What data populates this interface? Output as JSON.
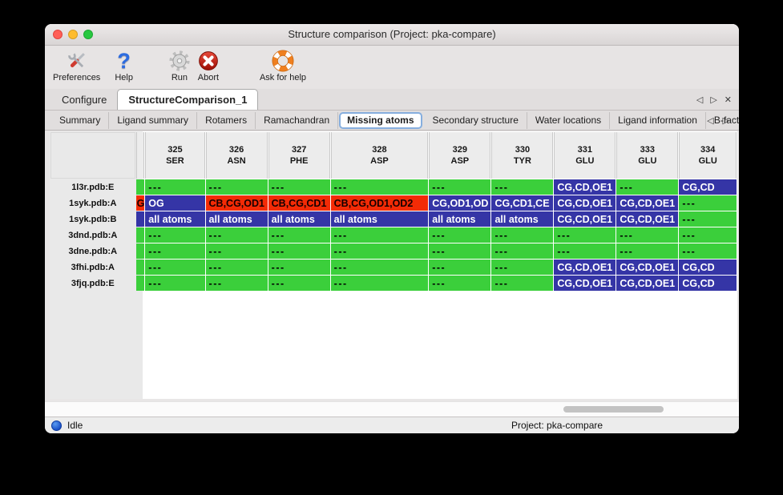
{
  "window": {
    "title": "Structure comparison (Project: pka-compare)"
  },
  "toolbar": {
    "buttons": [
      {
        "label": "Preferences",
        "icon": "tools-icon"
      },
      {
        "label": "Help",
        "icon": "question-icon"
      },
      {
        "label": "Run",
        "icon": "gear-icon"
      },
      {
        "label": "Abort",
        "icon": "abort-icon"
      },
      {
        "label": "Ask for help",
        "icon": "lifebuoy-icon"
      }
    ]
  },
  "icons": {
    "help_glyph": "?",
    "idle_dot": "blue-circle"
  },
  "tabs": {
    "primary": [
      {
        "label": "Configure",
        "selected": false
      },
      {
        "label": "StructureComparison_1",
        "selected": true
      }
    ],
    "secondary": [
      {
        "label": "Summary",
        "selected": false
      },
      {
        "label": "Ligand summary",
        "selected": false
      },
      {
        "label": "Rotamers",
        "selected": false
      },
      {
        "label": "Ramachandran",
        "selected": false
      },
      {
        "label": "Missing atoms",
        "selected": true
      },
      {
        "label": "Secondary structure",
        "selected": false
      },
      {
        "label": "Water locations",
        "selected": false
      },
      {
        "label": "Ligand information",
        "selected": false
      },
      {
        "label": "B-factors",
        "selected": false
      }
    ],
    "nav": {
      "left": "◁",
      "right": "▷",
      "close": "✕"
    }
  },
  "table": {
    "columns": [
      {
        "num": "325",
        "res": "SER"
      },
      {
        "num": "326",
        "res": "ASN"
      },
      {
        "num": "327",
        "res": "PHE"
      },
      {
        "num": "328",
        "res": "ASP"
      },
      {
        "num": "329",
        "res": "ASP"
      },
      {
        "num": "330",
        "res": "TYR"
      },
      {
        "num": "331",
        "res": "GLU"
      },
      {
        "num": "333",
        "res": "GLU"
      },
      {
        "num": "334",
        "res": "GLU"
      }
    ],
    "rows": [
      {
        "label": "1l3r.pdb:E",
        "sliver": {
          "c": "g",
          "t": ""
        },
        "cells": [
          {
            "c": "g",
            "t": "---"
          },
          {
            "c": "g",
            "t": "---"
          },
          {
            "c": "g",
            "t": "---"
          },
          {
            "c": "g",
            "t": "---"
          },
          {
            "c": "g",
            "t": "---"
          },
          {
            "c": "g",
            "t": "---"
          },
          {
            "c": "b",
            "t": "CG,CD,OE1"
          },
          {
            "c": "g",
            "t": "---"
          },
          {
            "c": "b",
            "t": "CG,CD"
          }
        ]
      },
      {
        "label": "1syk.pdb:A",
        "sliver": {
          "c": "r",
          "t": "G"
        },
        "cells": [
          {
            "c": "b",
            "t": "OG"
          },
          {
            "c": "r",
            "t": "CB,CG,OD1"
          },
          {
            "c": "r",
            "t": "CB,CG,CD1"
          },
          {
            "c": "r",
            "t": "CB,CG,OD1,OD2"
          },
          {
            "c": "b",
            "t": "CG,OD1,OD"
          },
          {
            "c": "b",
            "t": "CG,CD1,CE"
          },
          {
            "c": "b",
            "t": "CG,CD,OE1"
          },
          {
            "c": "b",
            "t": "CG,CD,OE1"
          },
          {
            "c": "g",
            "t": "---"
          }
        ]
      },
      {
        "label": "1syk.pdb:B",
        "sliver": {
          "c": "b",
          "t": ""
        },
        "cells": [
          {
            "c": "b",
            "t": "all atoms"
          },
          {
            "c": "b",
            "t": "all atoms"
          },
          {
            "c": "b",
            "t": "all atoms"
          },
          {
            "c": "b",
            "t": "all atoms"
          },
          {
            "c": "b",
            "t": "all atoms"
          },
          {
            "c": "b",
            "t": "all atoms"
          },
          {
            "c": "b",
            "t": "CG,CD,OE1"
          },
          {
            "c": "b",
            "t": "CG,CD,OE1"
          },
          {
            "c": "g",
            "t": "---"
          }
        ]
      },
      {
        "label": "3dnd.pdb:A",
        "sliver": {
          "c": "g",
          "t": ""
        },
        "cells": [
          {
            "c": "g",
            "t": "---"
          },
          {
            "c": "g",
            "t": "---"
          },
          {
            "c": "g",
            "t": "---"
          },
          {
            "c": "g",
            "t": "---"
          },
          {
            "c": "g",
            "t": "---"
          },
          {
            "c": "g",
            "t": "---"
          },
          {
            "c": "g",
            "t": "---"
          },
          {
            "c": "g",
            "t": "---"
          },
          {
            "c": "g",
            "t": "---"
          }
        ]
      },
      {
        "label": "3dne.pdb:A",
        "sliver": {
          "c": "g",
          "t": ""
        },
        "cells": [
          {
            "c": "g",
            "t": "---"
          },
          {
            "c": "g",
            "t": "---"
          },
          {
            "c": "g",
            "t": "---"
          },
          {
            "c": "g",
            "t": "---"
          },
          {
            "c": "g",
            "t": "---"
          },
          {
            "c": "g",
            "t": "---"
          },
          {
            "c": "g",
            "t": "---"
          },
          {
            "c": "g",
            "t": "---"
          },
          {
            "c": "g",
            "t": "---"
          }
        ]
      },
      {
        "label": "3fhi.pdb:A",
        "sliver": {
          "c": "g",
          "t": ""
        },
        "cells": [
          {
            "c": "g",
            "t": "---"
          },
          {
            "c": "g",
            "t": "---"
          },
          {
            "c": "g",
            "t": "---"
          },
          {
            "c": "g",
            "t": "---"
          },
          {
            "c": "g",
            "t": "---"
          },
          {
            "c": "g",
            "t": "---"
          },
          {
            "c": "b",
            "t": "CG,CD,OE1"
          },
          {
            "c": "b",
            "t": "CG,CD,OE1"
          },
          {
            "c": "b",
            "t": "CG,CD"
          }
        ]
      },
      {
        "label": "3fjq.pdb:E",
        "sliver": {
          "c": "g",
          "t": ""
        },
        "cells": [
          {
            "c": "g",
            "t": "---"
          },
          {
            "c": "g",
            "t": "---"
          },
          {
            "c": "g",
            "t": "---"
          },
          {
            "c": "g",
            "t": "---"
          },
          {
            "c": "g",
            "t": "---"
          },
          {
            "c": "g",
            "t": "---"
          },
          {
            "c": "b",
            "t": "CG,CD,OE1"
          },
          {
            "c": "b",
            "t": "CG,CD,OE1"
          },
          {
            "c": "b",
            "t": "CG,CD"
          }
        ]
      }
    ]
  },
  "statusbar": {
    "status": "Idle",
    "project": "Project: pka-compare"
  },
  "colors": {
    "green": "#3bcf3b",
    "blue": "#3535a6",
    "red": "#f32b06",
    "accent_blue": "#86aede"
  }
}
